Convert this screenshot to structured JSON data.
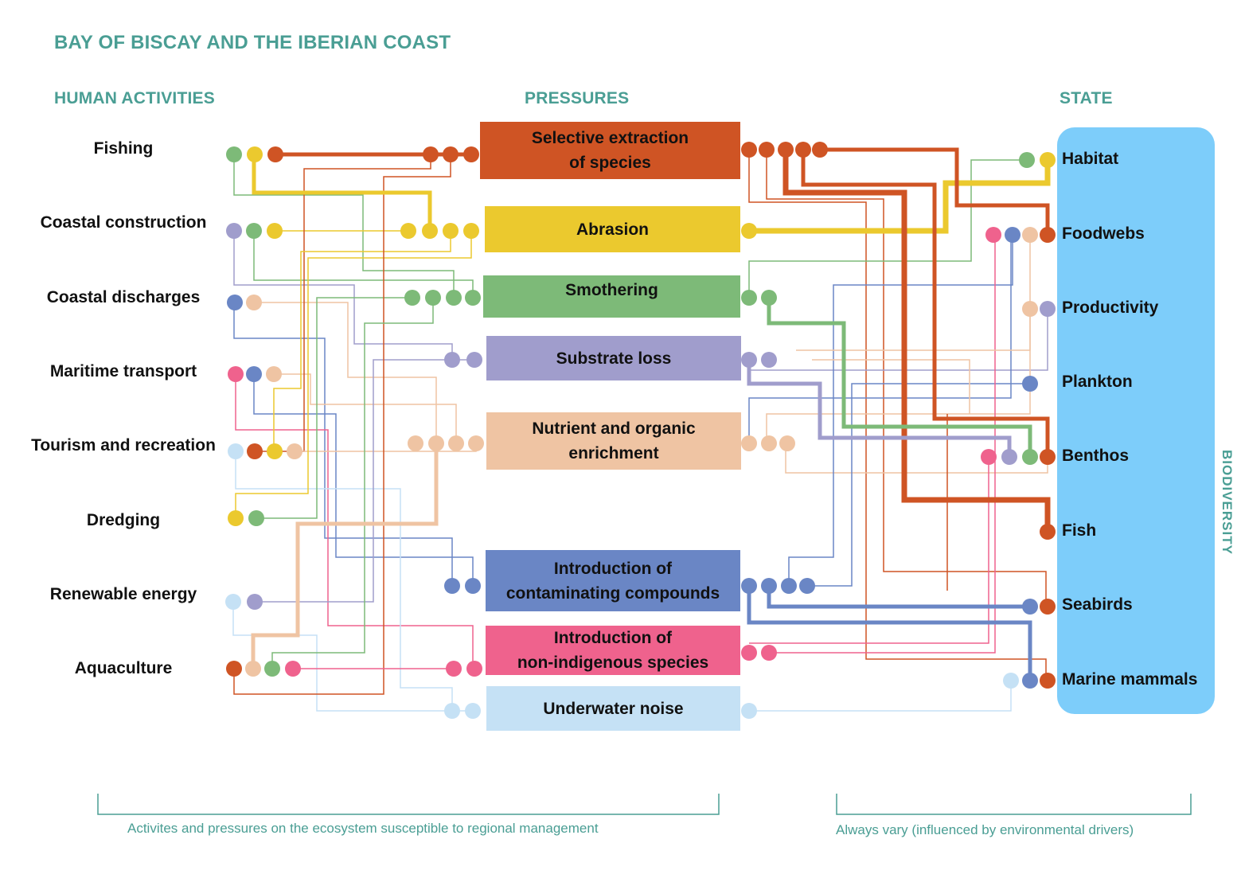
{
  "title": "BAY OF BISCAY AND THE IBERIAN COAST",
  "headers": {
    "activities": "HUMAN ACTIVITIES",
    "pressures": "PRESSURES",
    "state": "STATE",
    "biodiversity": "BIODIVERSITY"
  },
  "colors": {
    "selective": "#cf5424",
    "abrasion": "#ebc92e",
    "smothering": "#7dba78",
    "substrate": "#a09dcc",
    "nutrient": "#efc4a3",
    "contaminants": "#6a86c5",
    "nonindigenous": "#ef628d",
    "noise": "#c5e1f5",
    "panel": "#7dcdfa",
    "accent_text": "#4a9e94"
  },
  "activities": [
    "Fishing",
    "Coastal construction",
    "Coastal discharges",
    "Maritime transport",
    "Tourism and recreation",
    "Dredging",
    "Renewable energy",
    "Aquaculture"
  ],
  "pressures": [
    {
      "label": "Selective extraction\nof species",
      "color": "#cf5424"
    },
    {
      "label": "Abrasion",
      "color": "#ebc92e"
    },
    {
      "label": "Smothering",
      "color": "#7dba78"
    },
    {
      "label": "Substrate loss",
      "color": "#a09dcc"
    },
    {
      "label": "Nutrient and organic\nenrichment",
      "color": "#efc4a3"
    },
    {
      "label": "Introduction of\ncontaminating compounds",
      "color": "#6a86c5"
    },
    {
      "label": "Introduction of\nnon-indigenous species",
      "color": "#ef628d"
    },
    {
      "label": "Underwater noise",
      "color": "#c5e1f5"
    }
  ],
  "states": [
    "Habitat",
    "Foodwebs",
    "Productivity",
    "Plankton",
    "Benthos",
    "Fish",
    "Seabirds",
    "Marine mammals"
  ],
  "footer": {
    "left": "Activites and pressures on the ecosystem susceptible to regional management",
    "right": "Always vary (influenced by environmental drivers)"
  }
}
